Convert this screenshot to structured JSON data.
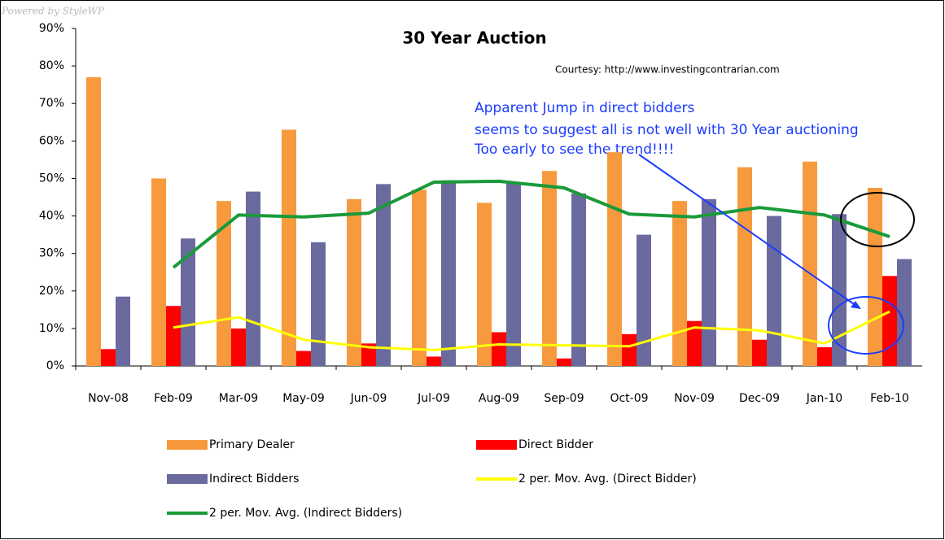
{
  "chart_data": {
    "type": "bar",
    "title": "30 Year Auction",
    "watermark": "Powered by StyleWP",
    "courtesy": "Courtesy: http://www.investingcontrarian.com",
    "annotation": [
      "Apparent Jump in direct bidders",
      "seems to suggest all is not well with 30 Year auctioning",
      "Too early to see the trend!!!!"
    ],
    "categories": [
      "Nov-08",
      "Feb-09",
      "Mar-09",
      "May-09",
      "Jun-09",
      "Jul-09",
      "Aug-09",
      "Sep-09",
      "Oct-09",
      "Nov-09",
      "Dec-09",
      "Jan-10",
      "Feb-10"
    ],
    "series": [
      {
        "name": "Primary Dealer",
        "type": "bar",
        "color": "#f79a3e",
        "values": [
          77,
          50,
          44,
          63,
          44.5,
          47,
          43.5,
          52,
          57,
          44,
          53,
          54.5,
          47.5
        ]
      },
      {
        "name": "Direct Bidder",
        "type": "bar",
        "color": "#ff0000",
        "values": [
          4.5,
          16,
          10,
          4,
          6,
          2.5,
          9,
          2,
          8.5,
          12,
          7,
          5,
          24
        ]
      },
      {
        "name": "Indirect Bidders",
        "type": "bar",
        "color": "#6a6a9e",
        "values": [
          18.5,
          34,
          46.5,
          33,
          48.5,
          49.5,
          49,
          46,
          35,
          44.5,
          40,
          40.5,
          28.5
        ]
      },
      {
        "name": "2 per. Mov. Avg. (Direct Bidder)",
        "type": "line",
        "color": "#ffff00",
        "values": [
          null,
          10.25,
          13,
          7,
          5,
          4.25,
          5.75,
          5.5,
          5.25,
          10.25,
          9.5,
          6,
          14.5
        ]
      },
      {
        "name": "2 per. Mov. Avg. (Indirect Bidders)",
        "type": "line",
        "color": "#1a9a3a",
        "values": [
          null,
          26.25,
          40.25,
          39.75,
          40.75,
          49,
          49.25,
          47.5,
          40.5,
          39.75,
          42.25,
          40.25,
          34.5
        ]
      }
    ],
    "ylim": [
      0,
      90
    ],
    "yticks": [
      {
        "value": 0,
        "label": "0%"
      },
      {
        "value": 10,
        "label": "10%"
      },
      {
        "value": 20,
        "label": "20%"
      },
      {
        "value": 30,
        "label": "30%"
      },
      {
        "value": 40,
        "label": "40%"
      },
      {
        "value": 50,
        "label": "50%"
      },
      {
        "value": 60,
        "label": "60%"
      },
      {
        "value": 70,
        "label": "70%"
      },
      {
        "value": 80,
        "label": "80%"
      },
      {
        "value": 90,
        "label": "90%"
      }
    ],
    "grid": false
  }
}
